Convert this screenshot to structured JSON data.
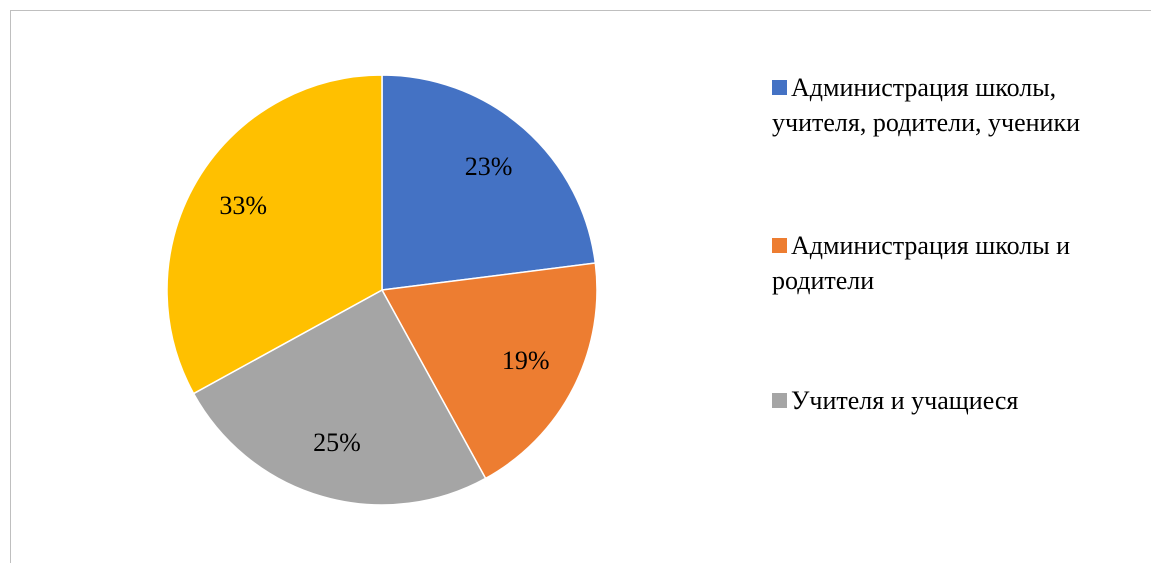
{
  "chart_data": {
    "type": "pie",
    "categories": [
      "Администрация школы, учителя, родители, ученики",
      "Администрация школы и родители",
      "Учителя и учащиеся",
      null
    ],
    "values": [
      23,
      19,
      25,
      33
    ],
    "value_labels": [
      "23%",
      "19%",
      "25%",
      "33%"
    ],
    "colors": [
      "#4472c4",
      "#ed7d31",
      "#a5a5a5",
      "#ffc000"
    ],
    "legend": "right"
  }
}
